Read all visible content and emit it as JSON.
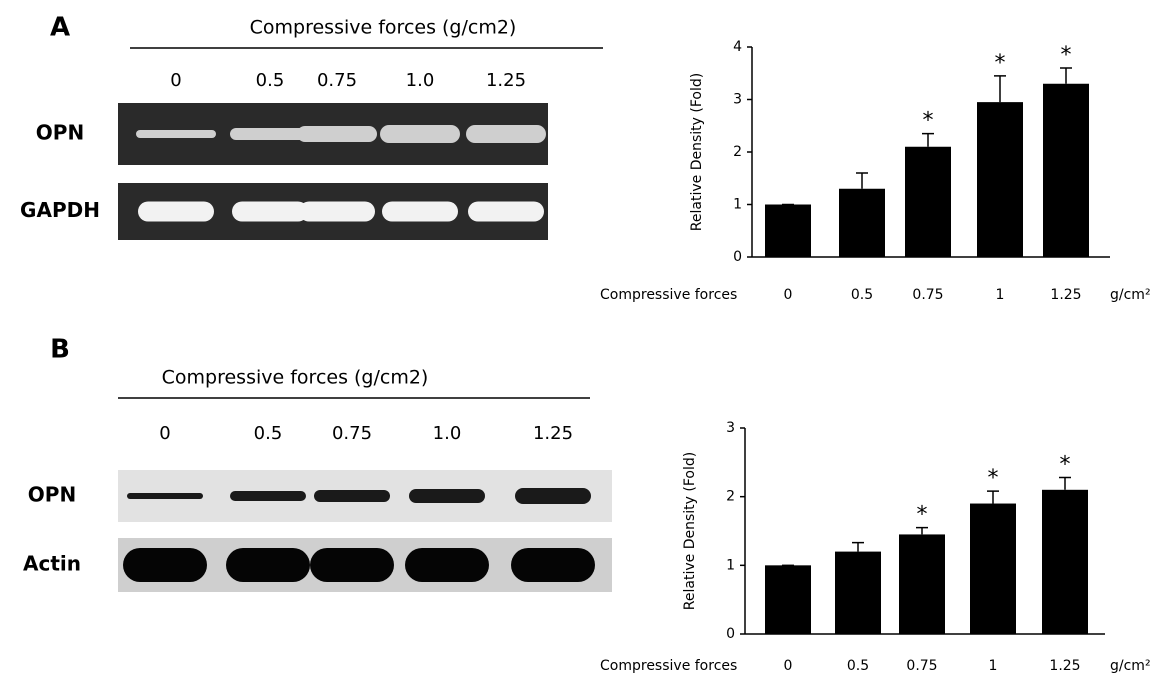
{
  "panels": [
    {
      "label": "A",
      "gel": {
        "title": "Compressive forces (g/cm2)",
        "lanes": [
          "0",
          "0.5",
          "0.75",
          "1.0",
          "1.25"
        ],
        "rows": [
          "OPN",
          "GAPDH"
        ]
      }
    },
    {
      "label": "B",
      "gel": {
        "title": "Compressive forces (g/cm2)",
        "lanes": [
          "0",
          "0.5",
          "0.75",
          "1.0",
          "1.25"
        ],
        "rows": [
          "OPN",
          "Actin"
        ]
      }
    }
  ],
  "chart_data": [
    {
      "type": "bar",
      "y_label": "Relative Density (Fold)",
      "x_label": "Compressive forces",
      "x_unit": "g/cm²",
      "categories": [
        "0",
        "0.5",
        "0.75",
        "1",
        "1.25"
      ],
      "values": [
        1,
        1.3,
        2.1,
        2.95,
        3.3
      ],
      "errors": [
        0,
        0.3,
        0.25,
        0.5,
        0.3
      ],
      "significance": [
        null,
        null,
        "*",
        "*",
        "*"
      ],
      "color": "#000000",
      "ylim": [
        0,
        4
      ],
      "yticks": [
        0,
        1,
        2,
        3,
        4
      ]
    },
    {
      "type": "bar",
      "y_label": "Relative Density (Fold)",
      "x_label": "Compressive forces",
      "x_unit": "g/cm²",
      "categories": [
        "0",
        "0.5",
        "0.75",
        "1",
        "1.25"
      ],
      "values": [
        1,
        1.2,
        1.45,
        1.9,
        2.1
      ],
      "errors": [
        0,
        0.13,
        0.1,
        0.18,
        0.18
      ],
      "significance": [
        null,
        null,
        "*",
        "*",
        "*"
      ],
      "color": "#000000",
      "ylim": [
        0,
        3
      ],
      "yticks": [
        0,
        1,
        2,
        3
      ]
    }
  ]
}
